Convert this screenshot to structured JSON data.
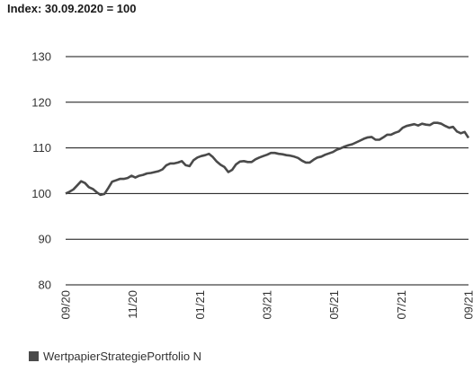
{
  "chart_data": {
    "type": "line",
    "title": "Index: 30.09.2020 = 100",
    "xlabel": "",
    "ylabel": "",
    "ylim": [
      80,
      130
    ],
    "yticks": [
      80,
      90,
      100,
      110,
      120,
      130
    ],
    "x_ticks": [
      "09/20",
      "11/20",
      "01/21",
      "03/21",
      "05/21",
      "07/21",
      "09/21"
    ],
    "grid": "horizontal",
    "legend_position": "bottom-left",
    "series": [
      {
        "name": "WertpapierStrategiePortfolio N",
        "color": "#4a4a4a",
        "values": [
          100.0,
          100.4,
          100.9,
          101.8,
          102.7,
          102.3,
          101.4,
          101.0,
          100.3,
          99.7,
          99.9,
          101.2,
          102.6,
          102.9,
          103.2,
          103.2,
          103.4,
          103.9,
          103.5,
          103.9,
          104.1,
          104.4,
          104.5,
          104.7,
          104.9,
          105.3,
          106.2,
          106.6,
          106.6,
          106.8,
          107.1,
          106.2,
          106.0,
          107.3,
          107.9,
          108.2,
          108.4,
          108.7,
          108.0,
          107.0,
          106.3,
          105.8,
          104.7,
          105.2,
          106.4,
          107.0,
          107.1,
          106.9,
          106.9,
          107.5,
          107.9,
          108.2,
          108.5,
          108.9,
          108.9,
          108.7,
          108.6,
          108.4,
          108.3,
          108.1,
          107.8,
          107.2,
          106.8,
          106.8,
          107.4,
          107.9,
          108.1,
          108.5,
          108.8,
          109.1,
          109.6,
          109.9,
          110.3,
          110.6,
          110.8,
          111.2,
          111.6,
          112.0,
          112.3,
          112.4,
          111.8,
          111.8,
          112.3,
          112.9,
          112.9,
          113.3,
          113.6,
          114.4,
          114.8,
          115.0,
          115.2,
          114.9,
          115.3,
          115.1,
          115.0,
          115.5,
          115.5,
          115.3,
          114.8,
          114.4,
          114.6,
          113.6,
          113.2,
          113.5,
          112.2
        ]
      }
    ]
  },
  "legend": {
    "items": [
      {
        "label": "WertpapierStrategiePortfolio N",
        "color": "#4a4a4a"
      }
    ]
  }
}
